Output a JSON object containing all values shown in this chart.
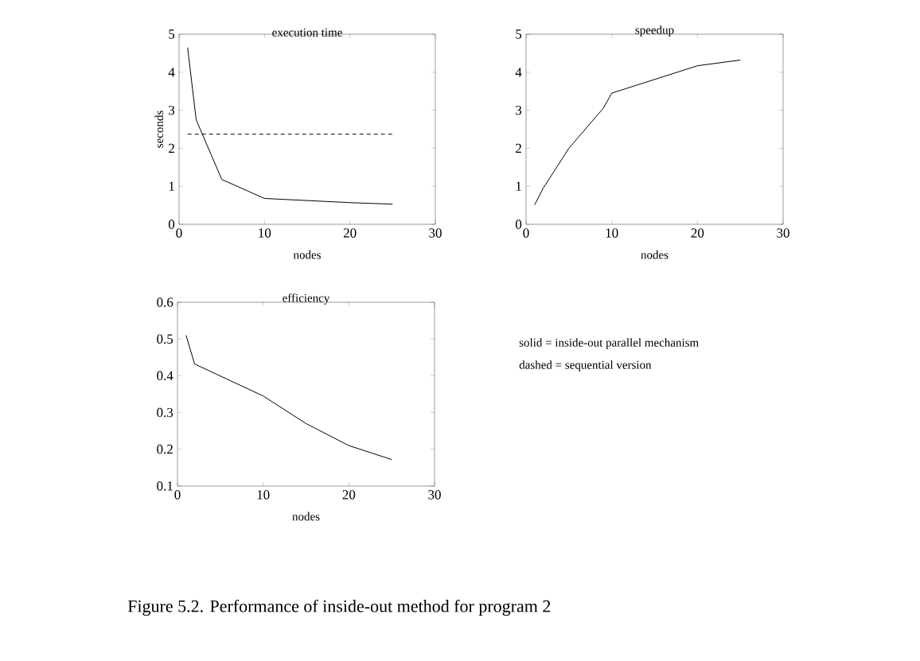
{
  "chart_data": [
    {
      "type": "line",
      "title": "execution time",
      "xlabel": "nodes",
      "ylabel": "seconds",
      "xlim": [
        0,
        30
      ],
      "ylim": [
        0,
        5
      ],
      "xticks": [
        0,
        10,
        20,
        30
      ],
      "yticks": [
        0,
        1,
        2,
        3,
        4,
        5
      ],
      "series": [
        {
          "color": "#000000",
          "line_style": "solid",
          "x": [
            1,
            2,
            5,
            10,
            20,
            25
          ],
          "values": [
            4.65,
            2.75,
            1.18,
            0.68,
            0.57,
            0.53
          ]
        },
        {
          "color": "#000000",
          "line_style": "dashed",
          "x": [
            1,
            25
          ],
          "values": [
            2.37,
            2.37
          ]
        }
      ]
    },
    {
      "type": "line",
      "title": "speedup",
      "xlabel": "nodes",
      "xlim": [
        0,
        30
      ],
      "ylim": [
        0,
        5
      ],
      "xticks": [
        0,
        10,
        20,
        30
      ],
      "yticks": [
        0,
        1,
        2,
        3,
        4,
        5
      ],
      "series": [
        {
          "color": "#000000",
          "line_style": "solid",
          "x": [
            1,
            2,
            5,
            9,
            10,
            20,
            25
          ],
          "values": [
            0.51,
            0.95,
            2.0,
            3.05,
            3.45,
            4.17,
            4.32
          ]
        }
      ]
    },
    {
      "type": "line",
      "title": "efficiency",
      "xlabel": "nodes",
      "xlim": [
        0,
        30
      ],
      "ylim": [
        0.1,
        0.6
      ],
      "xticks": [
        0,
        10,
        20,
        30
      ],
      "yticks": [
        0.1,
        0.2,
        0.3,
        0.4,
        0.5,
        0.6
      ],
      "series": [
        {
          "color": "#000000",
          "line_style": "solid",
          "x": [
            1,
            2,
            10,
            15,
            20,
            25
          ],
          "values": [
            0.51,
            0.432,
            0.345,
            0.27,
            0.21,
            0.172
          ]
        }
      ]
    },
    {
      "type": "other",
      "annotations": [
        "solid = inside-out parallel mechanism",
        "dashed = sequential version",
        "Figure 5.2. Performance of inside-out method for program 2"
      ]
    }
  ]
}
